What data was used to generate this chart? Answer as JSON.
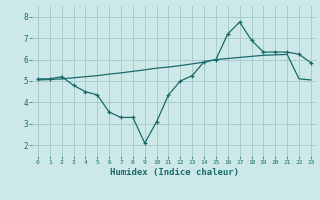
{
  "title": "",
  "xlabel": "Humidex (Indice chaleur)",
  "xlim": [
    -0.5,
    23.5
  ],
  "ylim": [
    1.5,
    8.5
  ],
  "yticks": [
    2,
    3,
    4,
    5,
    6,
    7,
    8
  ],
  "xticks": [
    0,
    1,
    2,
    3,
    4,
    5,
    6,
    7,
    8,
    9,
    10,
    11,
    12,
    13,
    14,
    15,
    16,
    17,
    18,
    19,
    20,
    21,
    22,
    23
  ],
  "bg_color": "#cce8e8",
  "grid_color": "#aacccc",
  "line_color": "#1a6b6b",
  "line1_x": [
    0,
    1,
    2,
    3,
    4,
    5,
    6,
    7,
    8,
    9,
    10,
    11,
    12,
    13,
    14,
    15,
    16,
    17,
    18,
    19,
    20,
    21,
    22,
    23
  ],
  "line1_y": [
    5.1,
    5.1,
    5.2,
    4.8,
    4.5,
    4.35,
    3.55,
    3.3,
    3.3,
    2.1,
    3.1,
    4.35,
    5.0,
    5.25,
    5.9,
    6.0,
    7.2,
    7.75,
    6.9,
    6.35,
    6.35,
    6.35,
    6.25,
    5.85
  ],
  "line2_x": [
    0,
    1,
    2,
    3,
    4,
    5,
    6,
    7,
    8,
    9,
    10,
    11,
    12,
    13,
    14,
    15,
    16,
    17,
    18,
    19,
    20,
    21,
    22,
    23
  ],
  "line2_y": [
    5.05,
    5.07,
    5.1,
    5.15,
    5.2,
    5.25,
    5.32,
    5.38,
    5.45,
    5.52,
    5.6,
    5.65,
    5.72,
    5.8,
    5.88,
    6.0,
    6.05,
    6.1,
    6.15,
    6.2,
    6.22,
    6.24,
    5.1,
    5.05
  ]
}
